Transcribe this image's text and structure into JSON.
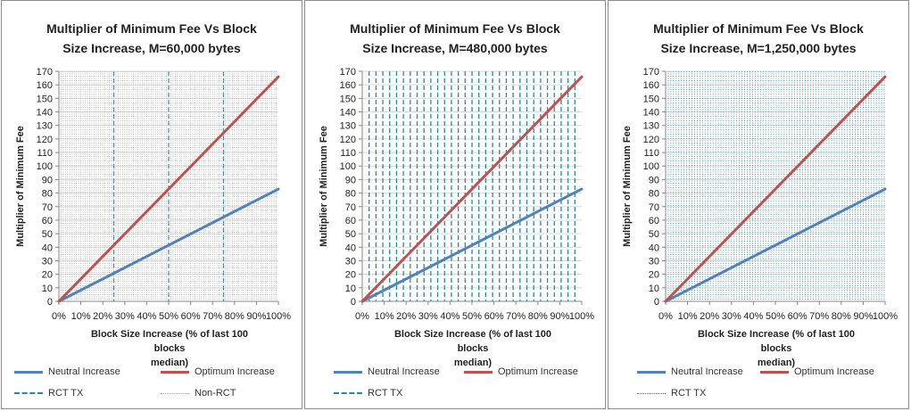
{
  "colors": {
    "neutral": "#4f81bd",
    "optimum": "#c0504d",
    "rct": "#31859b",
    "nonrct": "#a6a6a6",
    "grid": "#d9d9d9",
    "axis": "#868686"
  },
  "chart_data": [
    {
      "type": "line",
      "title": "Multiplier of Minimum Fee Vs Block\nSize Increase, M=60,000 bytes",
      "xlabel": "Block Size Increase (% of last 100 blocks\nmedian)",
      "ylabel": "Multiplier of Minimum Fee",
      "xlim": [
        0,
        100
      ],
      "ylim": [
        0,
        170
      ],
      "x_ticks": [
        "0%",
        "10%",
        "20%",
        "30%",
        "40%",
        "50%",
        "60%",
        "70%",
        "80%",
        "90%",
        "100%"
      ],
      "y_ticks": [
        "0",
        "10",
        "20",
        "30",
        "40",
        "50",
        "60",
        "70",
        "80",
        "90",
        "100",
        "110",
        "120",
        "130",
        "140",
        "150",
        "160",
        "170"
      ],
      "series": [
        {
          "name": "Neutral Increase",
          "x": [
            0,
            100
          ],
          "y": [
            0,
            83
          ]
        },
        {
          "name": "Optimum Increase",
          "x": [
            0,
            100
          ],
          "y": [
            0,
            166
          ]
        }
      ],
      "vlines": [
        {
          "name": "RCT TX",
          "style": "dashed",
          "x_values": [
            25,
            50,
            75
          ]
        },
        {
          "name": "Non-RCT",
          "style": "dotted",
          "x_step": 1
        }
      ]
    },
    {
      "type": "line",
      "title": "Multiplier of Minimum Fee Vs Block\nSize Increase, M=480,000 bytes",
      "xlabel": "Block Size Increase (% of last 100 blocks\nmedian)",
      "ylabel": "Multiplier of Minimum Fee",
      "xlim": [
        0,
        100
      ],
      "ylim": [
        0,
        170
      ],
      "x_ticks": [
        "0%",
        "10%",
        "20%",
        "30%",
        "40%",
        "50%",
        "60%",
        "70%",
        "80%",
        "90%",
        "100%"
      ],
      "y_ticks": [
        "0",
        "10",
        "20",
        "30",
        "40",
        "50",
        "60",
        "70",
        "80",
        "90",
        "100",
        "110",
        "120",
        "130",
        "140",
        "150",
        "160",
        "170"
      ],
      "series": [
        {
          "name": "Neutral Increase",
          "x": [
            0,
            100
          ],
          "y": [
            0,
            83
          ]
        },
        {
          "name": "Optimum Increase",
          "x": [
            0,
            100
          ],
          "y": [
            0,
            166
          ]
        }
      ],
      "vlines": [
        {
          "name": "RCT TX",
          "style": "dashed",
          "x_step": 3.125
        }
      ]
    },
    {
      "type": "line",
      "title": "Multiplier of Minimum Fee Vs Block\nSize Increase, M=1,250,000 bytes",
      "xlabel": "Block Size Increase (% of last 100 blocks\nmedian)",
      "ylabel": "Multiplier of Minimum Fee",
      "xlim": [
        0,
        100
      ],
      "ylim": [
        0,
        170
      ],
      "x_ticks": [
        "0%",
        "10%",
        "20%",
        "30%",
        "40%",
        "50%",
        "60%",
        "70%",
        "80%",
        "90%",
        "100%"
      ],
      "y_ticks": [
        "0",
        "10",
        "20",
        "30",
        "40",
        "50",
        "60",
        "70",
        "80",
        "90",
        "100",
        "110",
        "120",
        "130",
        "140",
        "150",
        "160",
        "170"
      ],
      "series": [
        {
          "name": "Neutral Increase",
          "x": [
            0,
            100
          ],
          "y": [
            0,
            83
          ]
        },
        {
          "name": "Optimum Increase",
          "x": [
            0,
            100
          ],
          "y": [
            0,
            166
          ]
        }
      ],
      "vlines": [
        {
          "name": "RCT TX",
          "style": "dotted",
          "x_step": 1.2
        }
      ]
    }
  ]
}
